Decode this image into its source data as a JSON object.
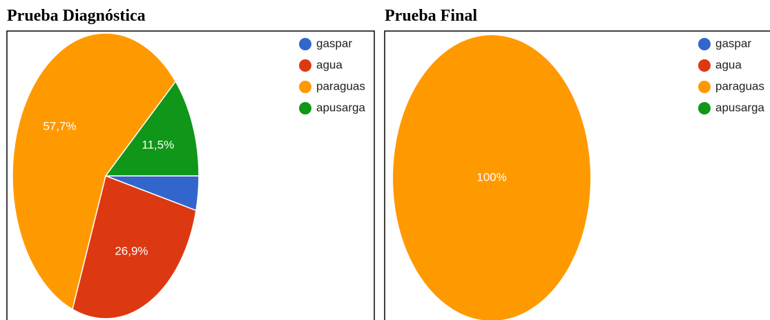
{
  "chart_data": [
    {
      "type": "pie",
      "title": "Prueba Diagnóstica",
      "categories": [
        "gaspar",
        "agua",
        "paraguas",
        "apusarga"
      ],
      "values": [
        3.9,
        26.9,
        57.7,
        11.5
      ],
      "value_labels": [
        null,
        "26,9%",
        "57,7%",
        "11,5%"
      ],
      "colors": [
        "#3366cc",
        "#dc3912",
        "#ff9900",
        "#109618"
      ],
      "legend": "right"
    },
    {
      "type": "pie",
      "title": "Prueba Final",
      "categories": [
        "gaspar",
        "agua",
        "paraguas",
        "apusarga"
      ],
      "values": [
        0,
        0,
        100,
        0
      ],
      "value_labels": [
        null,
        null,
        "100%",
        null
      ],
      "colors": [
        "#3366cc",
        "#dc3912",
        "#ff9900",
        "#109618"
      ],
      "legend": "right"
    }
  ]
}
